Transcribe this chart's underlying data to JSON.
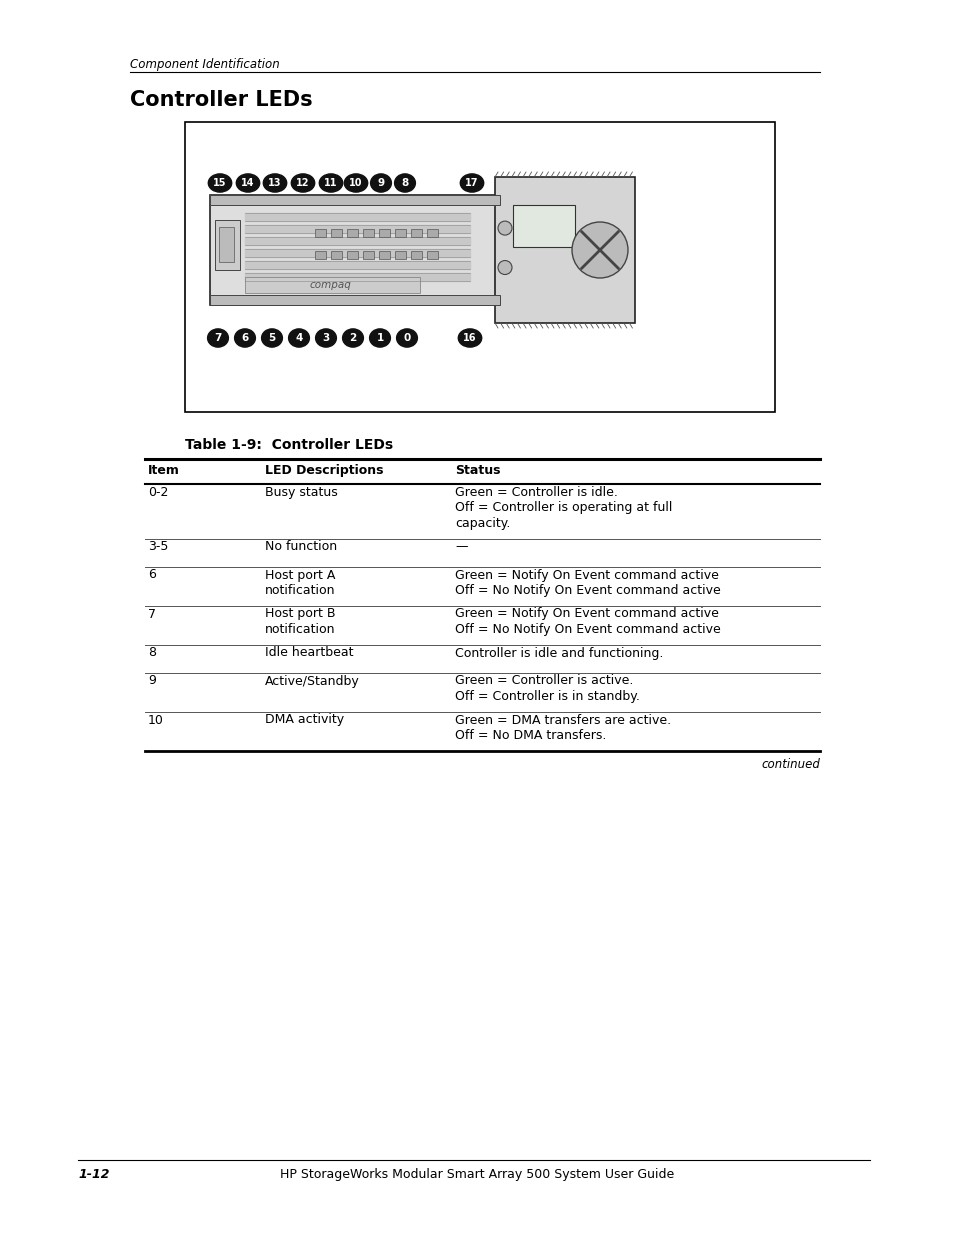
{
  "page_bg": "#ffffff",
  "header_text": "Component Identification",
  "title": "Controller LEDs",
  "table_title": "Table 1-9:  Controller LEDs",
  "col_headers": [
    "Item",
    "LED Descriptions",
    "Status"
  ],
  "rows": [
    {
      "item": "0-2",
      "desc": [
        "Busy status"
      ],
      "status": [
        "Green = Controller is idle.",
        "Off = Controller is operating at full",
        "capacity."
      ]
    },
    {
      "item": "3-5",
      "desc": [
        "No function"
      ],
      "status": [
        "—"
      ]
    },
    {
      "item": "6",
      "desc": [
        "Host port A",
        "notification"
      ],
      "status": [
        "Green = Notify On Event command active",
        "Off = No Notify On Event command active"
      ]
    },
    {
      "item": "7",
      "desc": [
        "Host port B",
        "notification"
      ],
      "status": [
        "Green = Notify On Event command active",
        "Off = No Notify On Event command active"
      ]
    },
    {
      "item": "8",
      "desc": [
        "Idle heartbeat"
      ],
      "status": [
        "Controller is idle and functioning."
      ]
    },
    {
      "item": "9",
      "desc": [
        "Active/Standby"
      ],
      "status": [
        "Green = Controller is active.",
        "Off = Controller is in standby."
      ]
    },
    {
      "item": "10",
      "desc": [
        "DMA activity"
      ],
      "status": [
        "Green = DMA transfers are active.",
        "Off = No DMA transfers."
      ]
    }
  ],
  "footer_left": "1-12",
  "footer_center": "HP StorageWorks Modular Smart Array 500 System User Guide",
  "footer_note": "continued"
}
